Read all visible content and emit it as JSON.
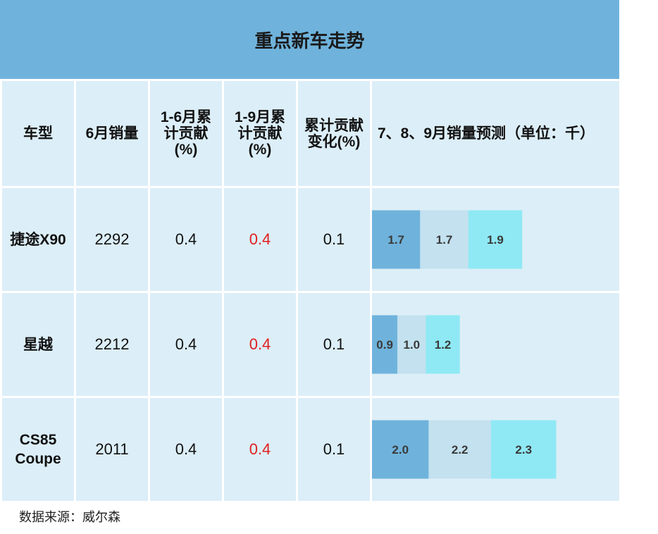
{
  "title": "重点新车走势",
  "headers": {
    "model": "车型",
    "june_sales": "6月销量",
    "contrib_1_6": [
      "1-6月累",
      "计贡献",
      "(%)"
    ],
    "contrib_1_9": [
      "1-9月累",
      "计贡献",
      "(%)"
    ],
    "contrib_change": [
      "累计贡献",
      "变化(%)"
    ],
    "forecast": "7、8、9月销量预测（单位：千）"
  },
  "rows": [
    {
      "model": [
        "捷途X90"
      ],
      "june_sales": "2292",
      "contrib_1_6": "0.4",
      "contrib_1_9": "0.4",
      "contrib_change": "0.1"
    },
    {
      "model": [
        "星越"
      ],
      "june_sales": "2212",
      "contrib_1_6": "0.4",
      "contrib_1_9": "0.4",
      "contrib_change": "0.1"
    },
    {
      "model": [
        "CS85",
        "Coupe"
      ],
      "june_sales": "2011",
      "contrib_1_6": "0.4",
      "contrib_1_9": "0.4",
      "contrib_change": "0.1"
    }
  ],
  "source": "数据来源：威尔森",
  "colors": {
    "header_bg": "#6fb3dc",
    "cell_bg": "#dceef7",
    "highlight_text": "#e02020",
    "july": "#6fb3dc",
    "august": "#c3e1ef",
    "september": "#8fe9f4"
  },
  "chart_data": {
    "type": "bar",
    "stacked": true,
    "orientation": "horizontal",
    "categories": [
      "捷途X90",
      "星越",
      "CS85 Coupe"
    ],
    "series": [
      {
        "values": [
          1.7,
          0.9,
          2.0
        ]
      },
      {
        "values": [
          1.7,
          1.0,
          2.2
        ]
      },
      {
        "values": [
          1.9,
          1.2,
          2.3
        ]
      }
    ],
    "title": "7、8、9月销量预测（单位：千）",
    "xlim": [
      0,
      8.8
    ],
    "data_labels": [
      [
        "1.7",
        "1.7",
        "1.9"
      ],
      [
        "0.9",
        "1.0",
        "1.2"
      ],
      [
        "2.0",
        "2.2",
        "2.3"
      ]
    ]
  }
}
